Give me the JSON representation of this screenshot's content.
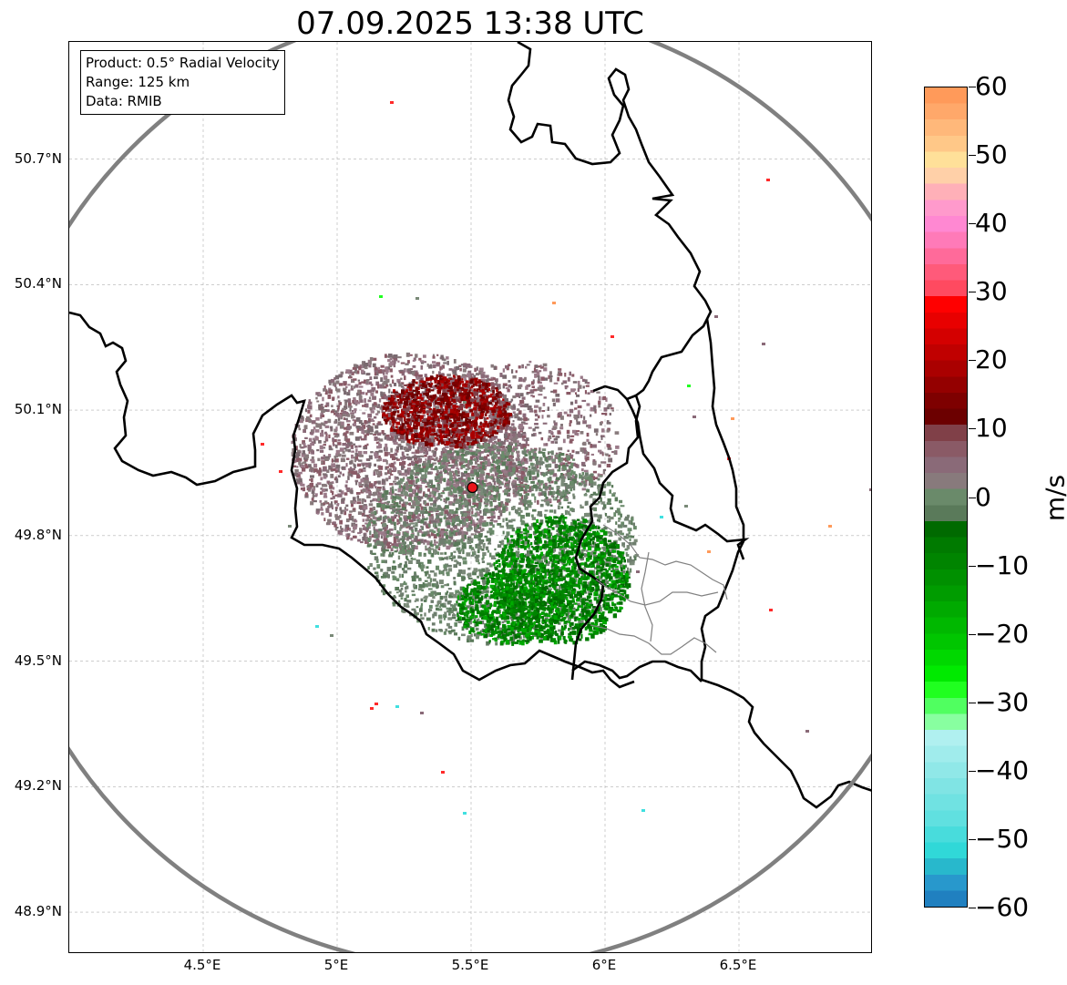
{
  "title": "07.09.2025 13:38 UTC",
  "info_box": {
    "product": "Product: 0.5° Radial Velocity",
    "range": "Range: 125 km",
    "data": "Data: RMIB"
  },
  "map": {
    "lon_min": 4.0,
    "lon_max": 7.0,
    "lat_min": 48.8,
    "lat_max": 50.98,
    "lat_ticks": [
      {
        "value": 50.7,
        "label": "50.7°N"
      },
      {
        "value": 50.4,
        "label": "50.4°N"
      },
      {
        "value": 50.1,
        "label": "50.1°N"
      },
      {
        "value": 49.8,
        "label": "49.8°N"
      },
      {
        "value": 49.5,
        "label": "49.5°N"
      },
      {
        "value": 49.2,
        "label": "49.2°N"
      },
      {
        "value": 48.9,
        "label": "48.9°N"
      }
    ],
    "lon_ticks": [
      {
        "value": 4.5,
        "label": "4.5°E"
      },
      {
        "value": 5.0,
        "label": "5°E"
      },
      {
        "value": 5.5,
        "label": "5.5°E"
      },
      {
        "value": 6.0,
        "label": "6°E"
      },
      {
        "value": 6.5,
        "label": "6.5°E"
      }
    ],
    "radar_site": {
      "lon": 5.505,
      "lat": 49.915,
      "color": "#e8141a"
    },
    "range_ring_color": "#808080",
    "border_color": "#000000",
    "admin_border_color": "#808080",
    "grid_color": "#b0b0b0"
  },
  "colorbar": {
    "unit": "m/s",
    "min": -60,
    "max": 60,
    "ticks": [
      {
        "value": 60,
        "label": "60"
      },
      {
        "value": 50,
        "label": "50"
      },
      {
        "value": 40,
        "label": "40"
      },
      {
        "value": 30,
        "label": "30"
      },
      {
        "value": 20,
        "label": "20"
      },
      {
        "value": 10,
        "label": "10"
      },
      {
        "value": 0,
        "label": "0"
      },
      {
        "value": -10,
        "label": "−10"
      },
      {
        "value": -20,
        "label": "−20"
      },
      {
        "value": -30,
        "label": "−30"
      },
      {
        "value": -40,
        "label": "−40"
      },
      {
        "value": -50,
        "label": "−50"
      },
      {
        "value": -60,
        "label": "−60"
      }
    ],
    "colors_top_to_bottom": [
      "#ff9a5a",
      "#ffa86a",
      "#ffb87a",
      "#ffc888",
      "#ffe099",
      "#ffd0a8",
      "#ffb0b8",
      "#ff9acc",
      "#ff88d2",
      "#ff7ab8",
      "#ff6a9a",
      "#ff5a7a",
      "#ff4a60",
      "#ff0000",
      "#e80000",
      "#d40000",
      "#c00000",
      "#aa0000",
      "#940000",
      "#7e0000",
      "#6c0000",
      "#804048",
      "#8a5a66",
      "#8a6a78",
      "#887a7c",
      "#6a8a6a",
      "#5a7a5a",
      "#006a00",
      "#007a00",
      "#008400",
      "#009000",
      "#009c00",
      "#00aa00",
      "#00b800",
      "#00c600",
      "#00d800",
      "#00ea00",
      "#20ff20",
      "#50ff60",
      "#88ffa0",
      "#b0f0f0",
      "#a0ecec",
      "#90e8e8",
      "#80e4e4",
      "#70e2e2",
      "#60e0e0",
      "#48dcdc",
      "#30d8d8",
      "#28b8cc",
      "#2898cc",
      "#2080c0"
    ]
  }
}
